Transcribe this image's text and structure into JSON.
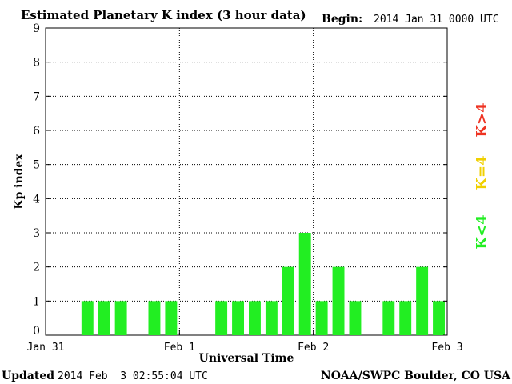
{
  "chart_data": {
    "type": "bar",
    "title": "Estimated Planetary K index (3 hour data)",
    "begin_label": "Begin:",
    "begin_value": "2014 Jan 31 0000 UTC",
    "xlabel": "Universal Time",
    "ylabel": "Kp index",
    "ylim": [
      0,
      9
    ],
    "y_ticks": [
      "0",
      "1",
      "2",
      "3",
      "4",
      "5",
      "6",
      "7",
      "8",
      "9"
    ],
    "x_ticks": [
      "Jan 31",
      "Feb 1",
      "Feb 2",
      "Feb 3"
    ],
    "bar_interval_hours": 3,
    "x_range_hours": [
      0,
      72
    ],
    "values": [
      0,
      0,
      1,
      1,
      1,
      0,
      1,
      1,
      0,
      0,
      1,
      1,
      1,
      1,
      2,
      3,
      1,
      2,
      1,
      0,
      1,
      1,
      2,
      1
    ],
    "grid": true,
    "legend": [
      {
        "label": "K<4",
        "color": "#22ee22"
      },
      {
        "label": "K=4",
        "color": "#f0d000"
      },
      {
        "label": "K>4",
        "color": "#ee3322"
      }
    ],
    "bar_color": "#22ee22"
  },
  "footer": {
    "updated_label": "Updated",
    "updated_value": "2014 Feb  3 02:55:04 UTC",
    "source": "NOAA/SWPC Boulder, CO USA"
  }
}
